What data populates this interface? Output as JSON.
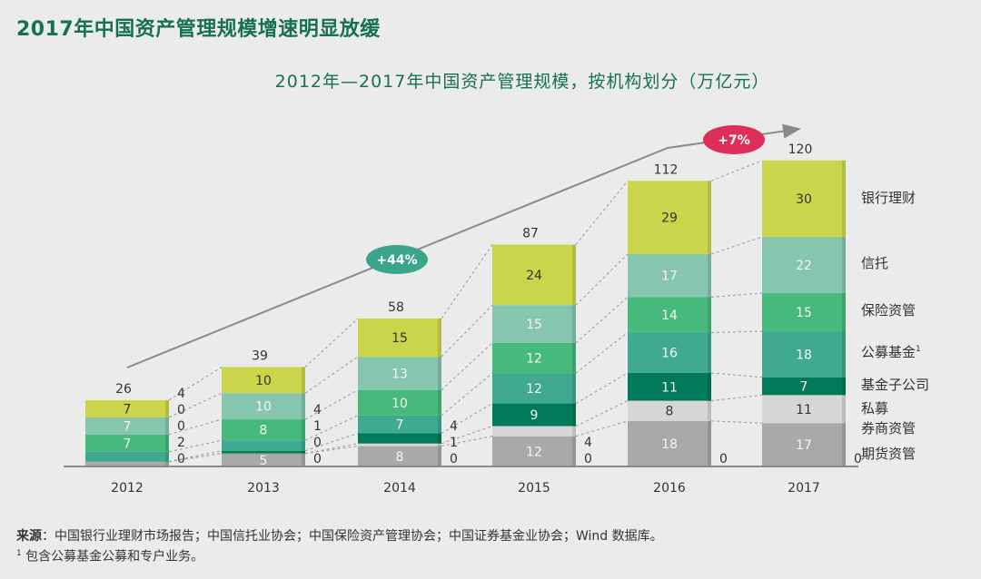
{
  "headline": "2017年中国资产管理规模增速明显放缓",
  "chart_data": {
    "type": "bar",
    "stacked": true,
    "title": "2012年—2017年中国资产管理规模，按机构划分（万亿元）",
    "categories": [
      "2012",
      "2013",
      "2014",
      "2015",
      "2016",
      "2017"
    ],
    "totals": [
      26,
      39,
      58,
      87,
      112,
      120
    ],
    "series": [
      {
        "name": "期货资管",
        "color": "#9e9e9e",
        "values": [
          0,
          0,
          0,
          0,
          0,
          0
        ]
      },
      {
        "name": "券商资管",
        "color": "#a9a9a9",
        "values": [
          2,
          5,
          8,
          12,
          18,
          17
        ]
      },
      {
        "name": "私募",
        "color": "#d6d6d6",
        "values": [
          0,
          0,
          1,
          4,
          8,
          11
        ]
      },
      {
        "name": "基金子公司",
        "color": "#007a58",
        "values": [
          0,
          1,
          4,
          9,
          11,
          7
        ]
      },
      {
        "name": "公募基金",
        "sup": "1",
        "color": "#3faa8f",
        "values": [
          4,
          4,
          7,
          12,
          16,
          18
        ]
      },
      {
        "name": "保险资管",
        "color": "#46ba7c",
        "values": [
          7,
          8,
          10,
          12,
          14,
          15
        ]
      },
      {
        "name": "信托",
        "color": "#86c5ae",
        "values": [
          7,
          10,
          13,
          15,
          17,
          22
        ]
      },
      {
        "name": "银行理财",
        "color": "#cbd54c",
        "values": [
          7,
          10,
          15,
          24,
          29,
          30
        ]
      }
    ],
    "growth_annotations": [
      {
        "label": "+44%",
        "color": "#3aa58a"
      },
      {
        "label": "+7%",
        "color": "#de2f5b"
      }
    ],
    "legend": "right"
  },
  "source": {
    "label": "来源",
    "text": "：中国银行业理财市场报告；中国信托业协会；中国保险资产管理协会；中国证券基金业协会；Wind 数据库。",
    "footnote_mark": "1",
    "footnote": " 包含公募基金公募和专户业务。"
  }
}
